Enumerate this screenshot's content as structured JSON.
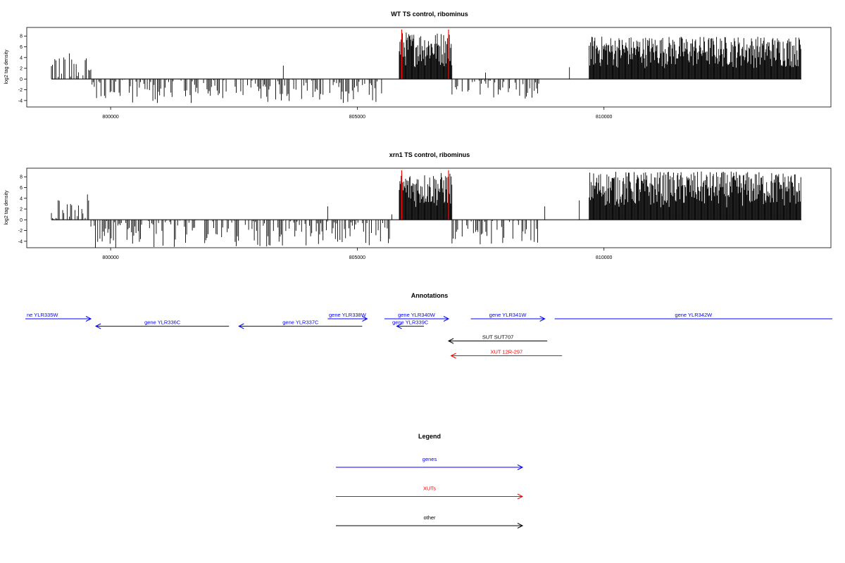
{
  "colors": {
    "gene": "#0000ff",
    "xut": "#ff0000",
    "other": "#000000",
    "marker": "#ff0000",
    "bars": "#000000"
  },
  "chart_data": [
    {
      "type": "bar",
      "title": "WT TS control, ribominus",
      "ylabel": "log2 tag density",
      "xticks": [
        800000,
        805000,
        810000
      ],
      "xtick_labels": [
        "800000",
        "805000",
        "810000"
      ],
      "yticks": [
        -4,
        -2,
        0,
        2,
        4,
        6,
        8
      ],
      "ytick_labels": [
        "-4",
        "-2",
        "0",
        "2",
        "4",
        "6",
        "8"
      ],
      "xlim": [
        798300,
        814600
      ],
      "ylim": [
        -5.2,
        9.6
      ],
      "markers_x": [
        805900,
        806850
      ],
      "regions": [
        {
          "x": [
            798800,
            799600
          ],
          "sign": 1,
          "max": 5
        },
        {
          "x": [
            799600,
            805500
          ],
          "sign": -1,
          "max": 4.5
        },
        {
          "x": [
            805850,
            806920
          ],
          "sign": 1,
          "max": 8.8
        },
        {
          "x": [
            806920,
            808700
          ],
          "sign": -1,
          "max": 3.8
        },
        {
          "x": [
            809700,
            814000
          ],
          "sign": 1,
          "max": 8
        }
      ],
      "spikes": [
        {
          "x": 803500,
          "y": 2.5
        },
        {
          "x": 807600,
          "y": 1.2
        },
        {
          "x": 809300,
          "y": 2.2
        }
      ]
    },
    {
      "type": "bar",
      "title": "xrn1 TS control, ribominus",
      "ylabel": "log2 tag density",
      "xticks": [
        800000,
        805000,
        810000
      ],
      "xtick_labels": [
        "800000",
        "805000",
        "810000"
      ],
      "yticks": [
        -4,
        -2,
        0,
        2,
        4,
        6,
        8
      ],
      "ytick_labels": [
        "-4",
        "-2",
        "0",
        "2",
        "4",
        "6",
        "8"
      ],
      "xlim": [
        798300,
        814600
      ],
      "ylim": [
        -5.2,
        9.6
      ],
      "markers_x": [
        805900,
        806850
      ],
      "regions": [
        {
          "x": [
            798800,
            799600
          ],
          "sign": 1,
          "max": 4.8
        },
        {
          "x": [
            799600,
            805700
          ],
          "sign": -1,
          "max": 5.2
        },
        {
          "x": [
            805850,
            806920
          ],
          "sign": 1,
          "max": 8.8
        },
        {
          "x": [
            806920,
            808700
          ],
          "sign": -1,
          "max": 4.6
        },
        {
          "x": [
            809700,
            814000
          ],
          "sign": 1,
          "max": 9
        }
      ],
      "spikes": [
        {
          "x": 804400,
          "y": 2.5
        },
        {
          "x": 805700,
          "y": 1.0
        },
        {
          "x": 808800,
          "y": 2.5
        },
        {
          "x": 809500,
          "y": 3.6
        }
      ]
    }
  ],
  "annotations": {
    "title": "Annotations",
    "features": [
      {
        "label": "ne YLR335W",
        "type": "gene",
        "start": 797600,
        "end": 799600,
        "strand": "+",
        "row": 0
      },
      {
        "label": "gene YLR336C",
        "type": "gene",
        "start": 799700,
        "end": 802400,
        "strand": "-",
        "row": 1
      },
      {
        "label": "gene YLR337C",
        "type": "gene",
        "start": 802600,
        "end": 805100,
        "strand": "-",
        "row": 1
      },
      {
        "label": "gene YLR338W",
        "type": "gene",
        "start": 804400,
        "end": 805200,
        "strand": "+",
        "row": 0
      },
      {
        "label": "gene YLR340W",
        "type": "gene",
        "start": 805550,
        "end": 806850,
        "strand": "+",
        "row": 0
      },
      {
        "label": "gene YLR339C",
        "type": "gene",
        "start": 805800,
        "end": 806350,
        "strand": "-",
        "row": 1
      },
      {
        "label": "gene YLR341W",
        "type": "gene",
        "start": 807300,
        "end": 808800,
        "strand": "+",
        "row": 0
      },
      {
        "label": "gene YLR342W",
        "type": "gene",
        "start": 809000,
        "end": 815000,
        "strand": "+",
        "row": 0
      },
      {
        "label": "SUT SUT707",
        "type": "other",
        "start": 806850,
        "end": 808850,
        "strand": "-",
        "row": 3
      },
      {
        "label": "XUT 12R-297",
        "type": "xut",
        "start": 806900,
        "end": 809150,
        "strand": "-",
        "row": 5
      }
    ]
  },
  "legend": {
    "title": "Legend",
    "items": [
      {
        "label": "genes",
        "type": "gene"
      },
      {
        "label": "XUTs",
        "type": "xut"
      },
      {
        "label": "other",
        "type": "other"
      }
    ]
  }
}
